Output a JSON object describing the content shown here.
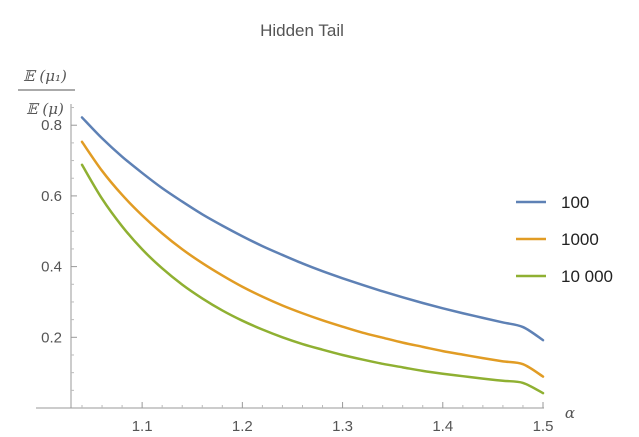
{
  "chart_data": {
    "type": "line",
    "title": "Hidden Tail",
    "xlabel": "α",
    "ylabel": {
      "numerator": "𝔼 (μ₁)",
      "denominator": "𝔼 (μ)"
    },
    "xlim": [
      1.04,
      1.5
    ],
    "ylim": [
      0.0,
      0.86
    ],
    "x_ticks": [
      1.1,
      1.2,
      1.3,
      1.4,
      1.5
    ],
    "x_tick_labels": [
      "1.1",
      "1.2",
      "1.3",
      "1.4",
      "1.5"
    ],
    "y_ticks": [
      0.2,
      0.4,
      0.6,
      0.8
    ],
    "y_tick_labels": [
      "0.2",
      "0.4",
      "0.6",
      "0.8"
    ],
    "legend_placement": "right",
    "grid": false,
    "series": [
      {
        "name": "100",
        "color": "#5e81b5",
        "x": [
          1.04,
          1.06,
          1.08,
          1.1,
          1.12,
          1.14,
          1.16,
          1.18,
          1.2,
          1.22,
          1.24,
          1.26,
          1.28,
          1.3,
          1.32,
          1.34,
          1.36,
          1.38,
          1.4,
          1.42,
          1.44,
          1.46,
          1.48,
          1.5
        ],
        "y": [
          0.822,
          0.763,
          0.711,
          0.665,
          0.622,
          0.584,
          0.548,
          0.516,
          0.486,
          0.458,
          0.433,
          0.409,
          0.387,
          0.367,
          0.348,
          0.33,
          0.313,
          0.297,
          0.282,
          0.268,
          0.255,
          0.242,
          0.229,
          0.192
        ]
      },
      {
        "name": "1000",
        "color": "#e19c24",
        "x": [
          1.04,
          1.06,
          1.08,
          1.1,
          1.12,
          1.14,
          1.16,
          1.18,
          1.2,
          1.22,
          1.24,
          1.26,
          1.28,
          1.3,
          1.32,
          1.34,
          1.36,
          1.38,
          1.4,
          1.42,
          1.44,
          1.46,
          1.48,
          1.5
        ],
        "y": [
          0.753,
          0.671,
          0.603,
          0.545,
          0.494,
          0.449,
          0.41,
          0.375,
          0.343,
          0.315,
          0.29,
          0.268,
          0.248,
          0.23,
          0.213,
          0.199,
          0.185,
          0.173,
          0.161,
          0.151,
          0.141,
          0.132,
          0.124,
          0.089
        ]
      },
      {
        "name": "10 000",
        "color": "#8fb032",
        "x": [
          1.04,
          1.06,
          1.08,
          1.1,
          1.12,
          1.14,
          1.16,
          1.18,
          1.2,
          1.22,
          1.24,
          1.26,
          1.28,
          1.3,
          1.32,
          1.34,
          1.36,
          1.38,
          1.4,
          1.42,
          1.44,
          1.46,
          1.48,
          1.5
        ],
        "y": [
          0.688,
          0.592,
          0.514,
          0.449,
          0.395,
          0.349,
          0.31,
          0.276,
          0.247,
          0.222,
          0.2,
          0.181,
          0.165,
          0.15,
          0.137,
          0.125,
          0.115,
          0.105,
          0.097,
          0.09,
          0.083,
          0.077,
          0.071,
          0.042
        ]
      }
    ]
  }
}
